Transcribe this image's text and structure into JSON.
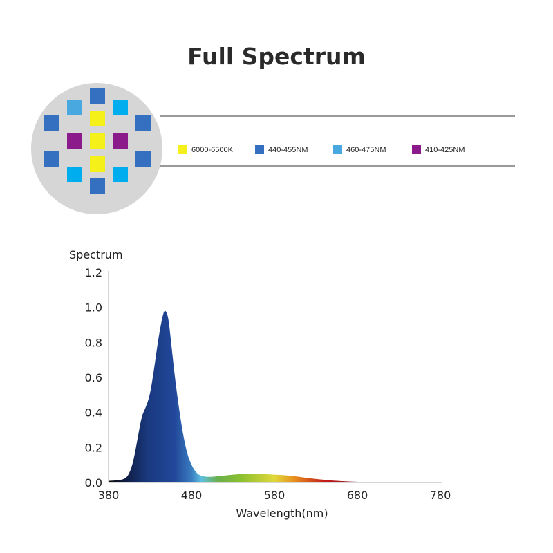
{
  "title": "Full Spectrum",
  "led_colors": {
    "white_6000k": "#f5ef1a",
    "blue_440": "#3570c0",
    "cyan_460": "#00aeef",
    "cyan_460_alt": "#4aa8e0",
    "violet_410": "#8b1a8b",
    "disc": "#d6d6d6"
  },
  "legend": [
    {
      "label": "6000-6500K",
      "color": "#f5ef1a"
    },
    {
      "label": "440-455NM",
      "color": "#3570c0"
    },
    {
      "label": "460-475NM",
      "color": "#4aa8e0"
    },
    {
      "label": "410-425NM",
      "color": "#8b1a8b"
    }
  ],
  "chart_data": {
    "type": "area",
    "title": "",
    "ylabel": "Spectrum",
    "xlabel": "Wavelength(nm)",
    "xlim": [
      380,
      780
    ],
    "ylim": [
      0,
      1.2
    ],
    "xticks": [
      "380",
      "480",
      "580",
      "680",
      "780"
    ],
    "yticks": [
      "0.0",
      "0.2",
      "0.4",
      "0.6",
      "0.8",
      "1.0",
      "1.2"
    ],
    "grid": false,
    "fill": "visible-spectrum gradient",
    "x": [
      380,
      390,
      400,
      405,
      410,
      415,
      420,
      425,
      430,
      435,
      440,
      445,
      448,
      452,
      455,
      460,
      465,
      470,
      475,
      480,
      485,
      490,
      500,
      520,
      540,
      560,
      580,
      600,
      620,
      640,
      660,
      680,
      700,
      740,
      780
    ],
    "y": [
      0.01,
      0.012,
      0.02,
      0.05,
      0.12,
      0.25,
      0.38,
      0.43,
      0.5,
      0.65,
      0.82,
      0.95,
      0.99,
      0.95,
      0.82,
      0.6,
      0.42,
      0.27,
      0.16,
      0.1,
      0.06,
      0.04,
      0.03,
      0.04,
      0.05,
      0.05,
      0.045,
      0.04,
      0.025,
      0.015,
      0.008,
      0.004,
      0.002,
      0.001,
      0.0
    ]
  }
}
